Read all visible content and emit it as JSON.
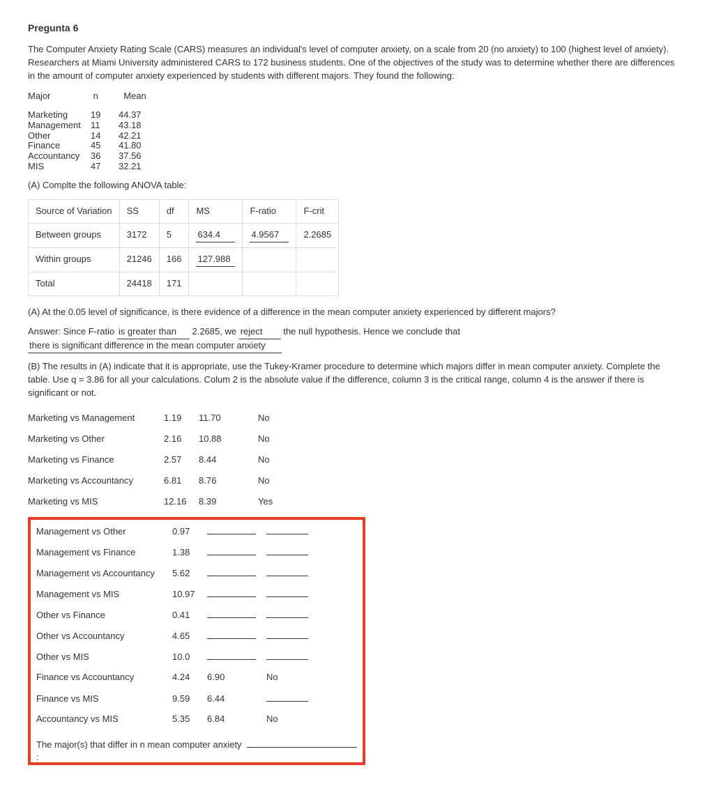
{
  "title": "Pregunta 6",
  "intro": "The Computer Anxiety Rating Scale (CARS) measures an individual's level of computer anxiety, on a scale from 20 (no anxiety) to 100 (highest level of anxiety). Researchers at Miami University administered CARS to 172 business students. One of the objectives of the study was to determine whether there are differences in the amount of computer anxiety experienced by students with different majors. They found the following:",
  "majors_header": {
    "c1": "Major",
    "c2": "n",
    "c3": "Mean"
  },
  "majors": [
    {
      "name": "Marketing",
      "n": "19",
      "mean": "44.37"
    },
    {
      "name": "Management",
      "n": "11",
      "mean": "43.18"
    },
    {
      "name": "Other",
      "n": "14",
      "mean": "42.21"
    },
    {
      "name": "Finance",
      "n": "45",
      "mean": "41.80"
    },
    {
      "name": "Accountancy",
      "n": "36",
      "mean": "37.56"
    },
    {
      "name": "MIS",
      "n": "47",
      "mean": "32.21"
    }
  ],
  "partA_table_label": "(A) Complte the following ANOVA table:",
  "anova": {
    "headers": [
      "Source of Variation",
      "SS",
      "df",
      "MS",
      "F-ratio",
      "F-crit"
    ],
    "rows": [
      {
        "src": "Between groups",
        "ss": "3172",
        "df": "5",
        "ms": "634.4",
        "msIsBlank": true,
        "f": "4.9567",
        "fIsBlank": true,
        "fcrit": "2.2685"
      },
      {
        "src": "Within groups",
        "ss": "21246",
        "df": "166",
        "ms": "127.988",
        "msIsBlank": true,
        "f": "",
        "fIsBlank": false,
        "fcrit": ""
      },
      {
        "src": "Total",
        "ss": "24418",
        "df": "171",
        "ms": "",
        "msIsBlank": false,
        "f": "",
        "fIsBlank": false,
        "fcrit": ""
      }
    ]
  },
  "partA_q": "(A)  At the 0.05 level of significance, is there evidence of a difference in the mean computer anxiety experienced by different majors?",
  "answer_line": {
    "prefix": "Answer: Since F-ratio ",
    "blank1": "is greater than",
    "mid1": " 2.2685, we ",
    "blank2": "reject",
    "mid2": " the null hypothesis. Hence we conclude that",
    "blank3": "there is significant difference in the mean computer anxiety"
  },
  "partB_text": "(B) The results in (A) indicate that it is appropriate, use the Tukey-Kramer procedure to determine which majors differ in mean computer anxiety. Complete the table. Use q = 3.86 for all your calculations. Colum 2 is the absolute value if the difference, column 3 is the critical range, column 4 is the answer if there is significant or not.",
  "tukey_top": [
    {
      "pair": "Marketing vs Management",
      "diff": "1.19",
      "cr": "11.70",
      "sig": "No"
    },
    {
      "pair": "Marketing vs Other",
      "diff": "2.16",
      "cr": "10.88",
      "sig": "No"
    },
    {
      "pair": "Marketing vs Finance",
      "diff": "2.57",
      "cr": "8.44",
      "sig": "No"
    },
    {
      "pair": "Marketing vs Accountancy",
      "diff": "6.81",
      "cr": "8.76",
      "sig": "No"
    },
    {
      "pair": "Marketing vs MIS",
      "diff": "12.16",
      "cr": "8.39",
      "sig": "Yes"
    }
  ],
  "tukey_box": [
    {
      "pair": "Management vs Other",
      "diff": "0.97",
      "cr": "",
      "sig": ""
    },
    {
      "pair": "Management vs Finance",
      "diff": "1.38",
      "cr": "",
      "sig": ""
    },
    {
      "pair": "Management vs Accountancy",
      "diff": "5.62",
      "cr": "",
      "sig": ""
    },
    {
      "pair": "Management vs MIS",
      "diff": "10.97",
      "cr": "",
      "sig": ""
    },
    {
      "pair": "Other vs Finance",
      "diff": "0.41",
      "cr": "",
      "sig": ""
    },
    {
      "pair": "Other vs Accountancy",
      "diff": "4.65",
      "cr": "",
      "sig": ""
    },
    {
      "pair": "Other vs MIS",
      "diff": "10.0",
      "cr": "",
      "sig": ""
    },
    {
      "pair": "Finance vs Accountancy",
      "diff": "4.24",
      "cr": "6.90",
      "sig": "No"
    },
    {
      "pair": "Finance vs MIS",
      "diff": "9.59",
      "cr": "6.44",
      "sig": ""
    },
    {
      "pair": "Accountancy vs MIS",
      "diff": "5.35",
      "cr": "6.84",
      "sig": "No"
    }
  ],
  "final_line": "The major(s) that differ in n mean computer anxiety :"
}
